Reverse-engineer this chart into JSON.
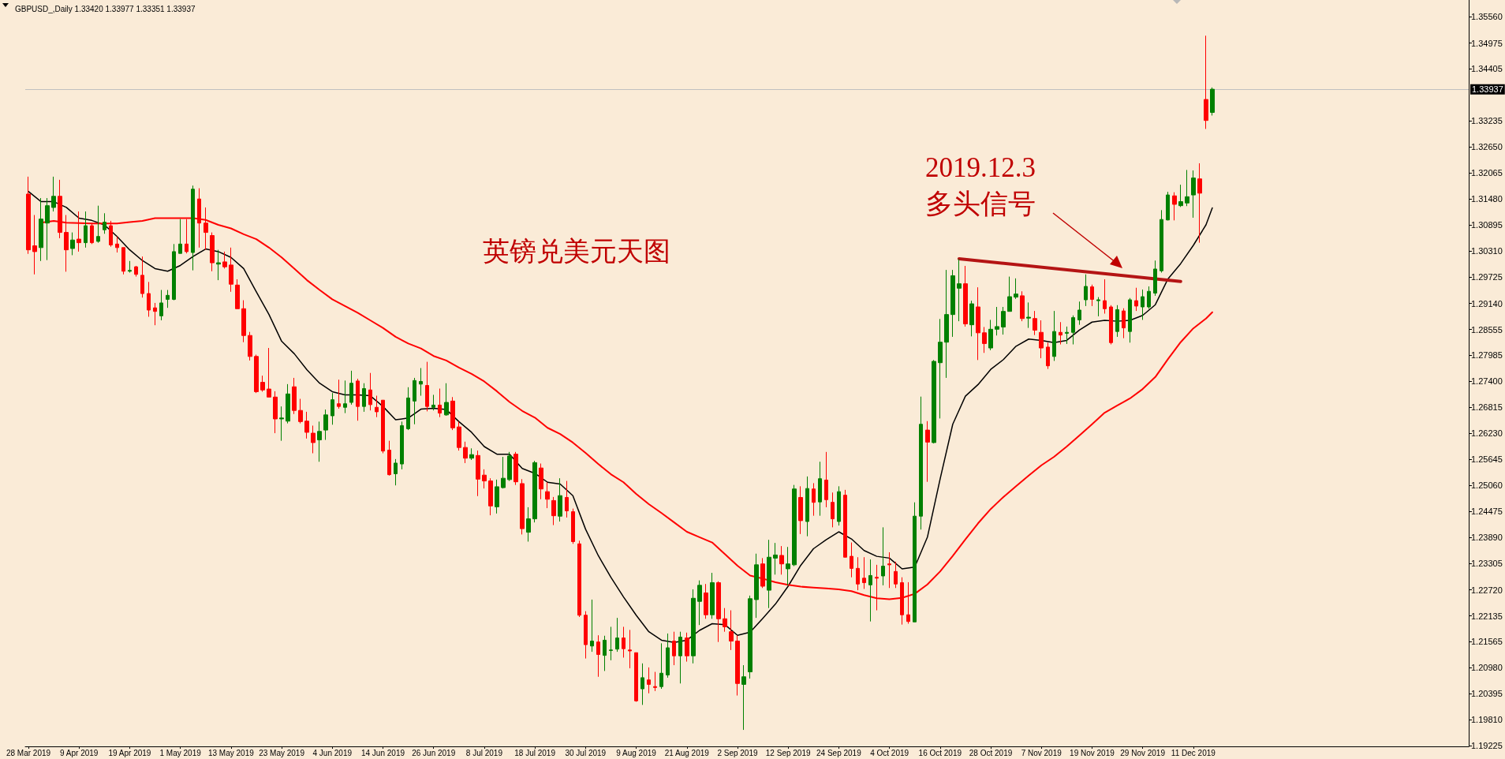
{
  "chart_data": {
    "type": "candlestick",
    "title": "英镑兑美元天图",
    "subtitle": "GBPUSD_,Daily 1.33420 1.33977 1.33351 1.33937",
    "annotations": [
      "2019.12.3",
      "多头信号"
    ],
    "categories": [
      "28 Mar 2019",
      null,
      null,
      null,
      null,
      null,
      null,
      null,
      "9 Apr 2019",
      null,
      null,
      null,
      null,
      null,
      null,
      null,
      "19 Apr 2019",
      null,
      null,
      null,
      null,
      null,
      null,
      null,
      "1 May 2019",
      null,
      null,
      null,
      null,
      null,
      null,
      null,
      "13 May 2019",
      null,
      null,
      null,
      null,
      null,
      null,
      null,
      "23 May 2019",
      null,
      null,
      null,
      null,
      null,
      null,
      null,
      "4 Jun 2019",
      null,
      null,
      null,
      null,
      null,
      null,
      null,
      "14 Jun 2019",
      null,
      null,
      null,
      null,
      null,
      null,
      null,
      "26 Jun 2019",
      null,
      null,
      null,
      null,
      null,
      null,
      null,
      "8 Jul 2019",
      null,
      null,
      null,
      null,
      null,
      null,
      null,
      "18 Jul 2019",
      null,
      null,
      null,
      null,
      null,
      null,
      null,
      "30 Jul 2019",
      null,
      null,
      null,
      null,
      null,
      null,
      null,
      "9 Aug 2019",
      null,
      null,
      null,
      null,
      null,
      null,
      null,
      "21 Aug 2019",
      null,
      null,
      null,
      null,
      null,
      null,
      null,
      "2 Sep 2019",
      null,
      null,
      null,
      null,
      null,
      null,
      null,
      "12 Sep 2019",
      null,
      null,
      null,
      null,
      null,
      null,
      null,
      "24 Sep 2019",
      null,
      null,
      null,
      null,
      null,
      null,
      null,
      "4 Oct 2019",
      null,
      null,
      null,
      null,
      null,
      null,
      null,
      "16 Oct 2019",
      null,
      null,
      null,
      null,
      null,
      null,
      null,
      "28 Oct 2019",
      null,
      null,
      null,
      null,
      null,
      null,
      null,
      "7 Nov 2019",
      null,
      null,
      null,
      null,
      null,
      null,
      null,
      "19 Nov 2019",
      null,
      null,
      null,
      null,
      null,
      null,
      null,
      "29 Nov 2019",
      null,
      null,
      null,
      null,
      null,
      null,
      null,
      "11 Dec 2019",
      null,
      null,
      null
    ],
    "series": [
      {
        "ohlc": [
          [
            1.3159,
            1.3198,
            1.3025,
            1.3034
          ],
          [
            1.3043,
            1.3112,
            1.2979,
            1.303
          ],
          [
            1.3039,
            1.315,
            1.3009,
            1.3103
          ],
          [
            1.3094,
            1.315,
            1.3011,
            1.3133
          ],
          [
            1.3129,
            1.3198,
            1.312,
            1.3154
          ],
          [
            1.3154,
            1.3191,
            1.306,
            1.3073
          ],
          [
            1.3073,
            1.3112,
            1.2985,
            1.3034
          ],
          [
            1.3037,
            1.3073,
            1.3022,
            1.3056
          ],
          [
            1.3058,
            1.312,
            1.303,
            1.305
          ],
          [
            1.305,
            1.312,
            1.3039,
            1.3088
          ],
          [
            1.3088,
            1.3094,
            1.3047,
            1.305
          ],
          [
            1.3053,
            1.3133,
            1.305,
            1.3064
          ],
          [
            1.3079,
            1.3116,
            1.307,
            1.3096
          ],
          [
            1.3088,
            1.3099,
            1.3041,
            1.3045
          ],
          [
            1.3047,
            1.3064,
            1.3028,
            1.3039
          ],
          [
            1.3039,
            1.3039,
            1.2979,
            1.2986
          ],
          [
            1.2986,
            1.3009,
            1.2983,
            1.2988
          ],
          [
            1.2996,
            1.2998,
            1.2974,
            1.2979
          ],
          [
            1.2977,
            1.3019,
            1.2927,
            1.2936
          ],
          [
            1.2936,
            1.2962,
            1.2884,
            1.2899
          ],
          [
            1.2904,
            1.2915,
            1.2865,
            1.2896
          ],
          [
            1.2886,
            1.2944,
            1.2876,
            1.2915
          ],
          [
            1.2923,
            1.2944,
            1.2904,
            1.2932
          ],
          [
            1.2923,
            1.3047,
            1.2921,
            1.303
          ],
          [
            1.3026,
            1.3103,
            1.3026,
            1.3047
          ],
          [
            1.3047,
            1.3103,
            1.3026,
            1.303
          ],
          [
            1.3028,
            1.3178,
            1.2988,
            1.317
          ],
          [
            1.3148,
            1.3172,
            1.3039,
            1.3094
          ],
          [
            1.3094,
            1.3129,
            1.3034,
            1.3073
          ],
          [
            1.3066,
            1.3073,
            1.2986,
            1.3005
          ],
          [
            1.3002,
            1.3034,
            1.2966,
            1.3005
          ],
          [
            1.3007,
            1.303,
            1.2992,
            1.2996
          ],
          [
            1.3,
            1.3039,
            1.294,
            1.2957
          ],
          [
            1.2955,
            1.2968,
            1.2902,
            1.2902
          ],
          [
            1.2902,
            1.2921,
            1.2827,
            1.2842
          ],
          [
            1.2842,
            1.285,
            1.2786,
            1.2795
          ],
          [
            1.2795,
            1.2799,
            1.2713,
            1.2716
          ],
          [
            1.2737,
            1.2752,
            1.2716,
            1.272
          ],
          [
            1.2722,
            1.2814,
            1.2704,
            1.2704
          ],
          [
            1.2704,
            1.2717,
            1.2623,
            1.2655
          ],
          [
            1.2655,
            1.2683,
            1.2606,
            1.2657
          ],
          [
            1.265,
            1.2733,
            1.2645,
            1.2711
          ],
          [
            1.2727,
            1.2747,
            1.2666,
            1.2674
          ],
          [
            1.2674,
            1.27,
            1.2645,
            1.2649
          ],
          [
            1.265,
            1.2671,
            1.2611,
            1.2625
          ],
          [
            1.2623,
            1.264,
            1.2578,
            1.2602
          ],
          [
            1.2608,
            1.2649,
            1.2559,
            1.2627
          ],
          [
            1.263,
            1.2676,
            1.2608,
            1.2664
          ],
          [
            1.2662,
            1.2713,
            1.2642,
            1.2698
          ],
          [
            1.2689,
            1.2743,
            1.2678,
            1.2683
          ],
          [
            1.2681,
            1.2741,
            1.2668,
            1.2689
          ],
          [
            1.2692,
            1.2763,
            1.2687,
            1.2735
          ],
          [
            1.274,
            1.2745,
            1.2651,
            1.2683
          ],
          [
            1.2683,
            1.2735,
            1.2671,
            1.2723
          ],
          [
            1.272,
            1.2758,
            1.2674,
            1.2687
          ],
          [
            1.2681,
            1.2707,
            1.2659,
            1.2671
          ],
          [
            1.2697,
            1.2697,
            1.2578,
            1.2583
          ],
          [
            1.2585,
            1.2606,
            1.2528,
            1.253
          ],
          [
            1.2532,
            1.2565,
            1.2506,
            1.2556
          ],
          [
            1.2554,
            1.2649,
            1.2542,
            1.264
          ],
          [
            1.2633,
            1.2726,
            1.263,
            1.2702
          ],
          [
            1.2695,
            1.2747,
            1.2643,
            1.2741
          ],
          [
            1.2733,
            1.2769,
            1.2707,
            1.2739
          ],
          [
            1.273,
            1.2783,
            1.2672,
            1.2683
          ],
          [
            1.2681,
            1.2709,
            1.2674,
            1.2686
          ],
          [
            1.2686,
            1.2723,
            1.2659,
            1.2668
          ],
          [
            1.2664,
            1.2735,
            1.2662,
            1.2692
          ],
          [
            1.2695,
            1.2704,
            1.263,
            1.2635
          ],
          [
            1.2637,
            1.2649,
            1.2584,
            1.2591
          ],
          [
            1.2591,
            1.2604,
            1.2556,
            1.2567
          ],
          [
            1.2567,
            1.2589,
            1.2563,
            1.2575
          ],
          [
            1.2573,
            1.2584,
            1.2482,
            1.252
          ],
          [
            1.2529,
            1.2542,
            1.2499,
            1.2516
          ],
          [
            1.2516,
            1.2522,
            1.2439,
            1.246
          ],
          [
            1.2458,
            1.2519,
            1.2443,
            1.2503
          ],
          [
            1.2501,
            1.257,
            1.2499,
            1.2522
          ],
          [
            1.2519,
            1.2581,
            1.2516,
            1.2572
          ],
          [
            1.2576,
            1.2581,
            1.2507,
            1.2514
          ],
          [
            1.251,
            1.252,
            1.2396,
            1.2409
          ],
          [
            1.2401,
            1.2457,
            1.238,
            1.2431
          ],
          [
            1.2431,
            1.2561,
            1.2423,
            1.2557
          ],
          [
            1.2545,
            1.2555,
            1.2475,
            1.2498
          ],
          [
            1.2492,
            1.2513,
            1.2455,
            1.2475
          ],
          [
            1.2472,
            1.248,
            1.2417,
            1.2438
          ],
          [
            1.2437,
            1.2522,
            1.2425,
            1.2483
          ],
          [
            1.2479,
            1.2516,
            1.2434,
            1.2449
          ],
          [
            1.2447,
            1.2454,
            1.2375,
            1.238
          ],
          [
            1.2375,
            1.2382,
            1.2211,
            1.2215
          ],
          [
            1.2215,
            1.2224,
            1.2118,
            1.2149
          ],
          [
            1.2146,
            1.225,
            1.2133,
            1.2157
          ],
          [
            1.2155,
            1.217,
            1.2077,
            1.2127
          ],
          [
            1.2125,
            1.2169,
            1.209,
            1.2159
          ],
          [
            1.2136,
            1.2189,
            1.2114,
            1.2137
          ],
          [
            1.2139,
            1.2209,
            1.2133,
            1.2164
          ],
          [
            1.2164,
            1.2189,
            1.212,
            1.214
          ],
          [
            1.2137,
            1.2182,
            1.2096,
            1.2135
          ],
          [
            1.2131,
            1.2131,
            1.2021,
            1.2023
          ],
          [
            1.205,
            1.2107,
            1.2014,
            1.2075
          ],
          [
            1.207,
            1.2098,
            1.204,
            1.206
          ],
          [
            1.2055,
            1.2088,
            1.2045,
            1.2053
          ],
          [
            1.2055,
            1.2152,
            1.205,
            1.2085
          ],
          [
            1.2081,
            1.2174,
            1.2075,
            1.2142
          ],
          [
            1.2157,
            1.2178,
            1.2103,
            1.2124
          ],
          [
            1.2124,
            1.2178,
            1.2062,
            1.2166
          ],
          [
            1.2164,
            1.2176,
            1.2111,
            1.2124
          ],
          [
            1.2124,
            1.2273,
            1.2107,
            1.2253
          ],
          [
            1.2246,
            1.2293,
            1.2193,
            1.2282
          ],
          [
            1.2265,
            1.2285,
            1.2207,
            1.2216
          ],
          [
            1.2216,
            1.231,
            1.2207,
            1.2288
          ],
          [
            1.2288,
            1.2291,
            1.2155,
            1.2207
          ],
          [
            1.2207,
            1.2231,
            1.2178,
            1.2189
          ],
          [
            1.2178,
            1.2226,
            1.2137,
            1.2157
          ],
          [
            1.2157,
            1.217,
            1.2035,
            1.2062
          ],
          [
            1.206,
            1.2103,
            1.1958,
            1.2077
          ],
          [
            1.2088,
            1.2259,
            1.2073,
            1.2252
          ],
          [
            1.225,
            1.2353,
            1.2209,
            1.2328
          ],
          [
            1.233,
            1.2343,
            1.2276,
            1.228
          ],
          [
            1.2271,
            1.2384,
            1.2231,
            1.2345
          ],
          [
            1.2343,
            1.2377,
            1.2306,
            1.235
          ],
          [
            1.2349,
            1.237,
            1.2306,
            1.233
          ],
          [
            1.2319,
            1.2368,
            1.2282,
            1.233
          ],
          [
            1.2328,
            1.2507,
            1.2325,
            1.2498
          ],
          [
            1.2479,
            1.2504,
            1.2397,
            1.2427
          ],
          [
            1.2425,
            1.2526,
            1.2392,
            1.2499
          ],
          [
            1.2498,
            1.2511,
            1.2438,
            1.2468
          ],
          [
            1.2469,
            1.2559,
            1.2438,
            1.2521
          ],
          [
            1.2518,
            1.2581,
            1.2457,
            1.2474
          ],
          [
            1.2468,
            1.249,
            1.2412,
            1.2431
          ],
          [
            1.2425,
            1.2504,
            1.2416,
            1.2492
          ],
          [
            1.2484,
            1.2496,
            1.2345,
            1.2345
          ],
          [
            1.2347,
            1.2378,
            1.23,
            1.232
          ],
          [
            1.232,
            1.2345,
            1.2271,
            1.2285
          ],
          [
            1.2298,
            1.2345,
            1.2274,
            1.2288
          ],
          [
            1.2283,
            1.234,
            1.2201,
            1.2304
          ],
          [
            1.23,
            1.2328,
            1.2226,
            1.2298
          ],
          [
            1.2303,
            1.2412,
            1.2282,
            1.2325
          ],
          [
            1.233,
            1.2356,
            1.2276,
            1.2328
          ],
          [
            1.2313,
            1.2335,
            1.2276,
            1.2285
          ],
          [
            1.2288,
            1.23,
            1.2194,
            1.2216
          ],
          [
            1.2216,
            1.2289,
            1.2196,
            1.2201
          ],
          [
            1.22,
            1.2468,
            1.22,
            1.2437
          ],
          [
            1.2437,
            1.2705,
            1.2407,
            1.2643
          ],
          [
            1.263,
            1.265,
            1.2514,
            1.2603
          ],
          [
            1.2602,
            1.2787,
            1.26,
            1.2784
          ],
          [
            1.2781,
            1.2879,
            1.2656,
            1.2827
          ],
          [
            1.2827,
            1.2989,
            1.2747,
            1.2889
          ],
          [
            1.2889,
            1.2989,
            1.2839,
            1.2976
          ],
          [
            1.2948,
            1.3013,
            1.2874,
            1.2958
          ],
          [
            1.2958,
            1.2998,
            1.2862,
            1.2868
          ],
          [
            1.2866,
            1.292,
            1.284,
            1.2913
          ],
          [
            1.2906,
            1.295,
            1.2787,
            1.2848
          ],
          [
            1.2848,
            1.2861,
            1.2803,
            1.2824
          ],
          [
            1.2814,
            1.2877,
            1.2809,
            1.2856
          ],
          [
            1.2856,
            1.2906,
            1.2842,
            1.2862
          ],
          [
            1.2861,
            1.2906,
            1.2844,
            1.2896
          ],
          [
            1.2896,
            1.2974,
            1.2896,
            1.2929
          ],
          [
            1.2928,
            1.297,
            1.2924,
            1.2935
          ],
          [
            1.2931,
            1.2941,
            1.2874,
            1.288
          ],
          [
            1.2881,
            1.2916,
            1.2859,
            1.2883
          ],
          [
            1.288,
            1.2897,
            1.2843,
            1.2854
          ],
          [
            1.2849,
            1.2876,
            1.2791,
            1.2814
          ],
          [
            1.2816,
            1.2826,
            1.2767,
            1.2774
          ],
          [
            1.2795,
            1.2897,
            1.2785,
            1.2851
          ],
          [
            1.2849,
            1.2872,
            1.2822,
            1.2843
          ],
          [
            1.2847,
            1.2862,
            1.2823,
            1.2849
          ],
          [
            1.2849,
            1.2887,
            1.2822,
            1.2882
          ],
          [
            1.2877,
            1.2918,
            1.2866,
            1.2899
          ],
          [
            1.2922,
            1.2979,
            1.2908,
            1.2952
          ],
          [
            1.2951,
            1.2956,
            1.2908,
            1.2923
          ],
          [
            1.292,
            1.2928,
            1.2885,
            1.2922
          ],
          [
            1.292,
            1.2968,
            1.2891,
            1.2902
          ],
          [
            1.2906,
            1.291,
            1.2822,
            1.2826
          ],
          [
            1.2851,
            1.291,
            1.2839,
            1.29
          ],
          [
            1.2897,
            1.2903,
            1.2836,
            1.2859
          ],
          [
            1.2851,
            1.2926,
            1.2826,
            1.2922
          ],
          [
            1.292,
            1.2949,
            1.2897,
            1.2908
          ],
          [
            1.2906,
            1.2945,
            1.2877,
            1.2929
          ],
          [
            1.2906,
            1.2952,
            1.2902,
            1.2941
          ],
          [
            1.2937,
            1.301,
            1.2931,
            1.2991
          ],
          [
            1.2987,
            1.3123,
            1.2983,
            1.3102
          ],
          [
            1.3101,
            1.3164,
            1.31,
            1.3157
          ],
          [
            1.3155,
            1.3163,
            1.31,
            1.3136
          ],
          [
            1.3133,
            1.318,
            1.313,
            1.3142
          ],
          [
            1.3139,
            1.3213,
            1.3132,
            1.3153
          ],
          [
            1.3157,
            1.3212,
            1.3106,
            1.3195
          ],
          [
            1.3193,
            1.3228,
            1.305,
            1.3161
          ],
          [
            1.3371,
            1.3514,
            1.3305,
            1.3324
          ],
          [
            1.3342,
            1.3398,
            1.3335,
            1.3394
          ]
        ],
        "colors": [
          "#ff0000",
          "#ff0000",
          "#008000",
          "#008000",
          "#008000",
          "#ff0000",
          "#ff0000",
          "#008000",
          "#ff0000",
          "#008000",
          "#ff0000",
          "#008000",
          "#008000",
          "#ff0000",
          "#ff0000",
          "#ff0000",
          "#008000",
          "#ff0000",
          "#ff0000",
          "#ff0000",
          "#ff0000",
          "#008000",
          "#008000",
          "#008000",
          "#008000",
          "#ff0000",
          "#008000",
          "#ff0000",
          "#ff0000",
          "#ff0000",
          "#008000",
          "#ff0000",
          "#ff0000",
          "#ff0000",
          "#ff0000",
          "#ff0000",
          "#ff0000",
          "#ff0000",
          "#ff0000",
          "#ff0000",
          "#008000",
          "#008000",
          "#ff0000",
          "#ff0000",
          "#ff0000",
          "#ff0000",
          "#008000",
          "#008000",
          "#008000",
          "#ff0000",
          "#008000",
          "#008000",
          "#ff0000",
          "#008000",
          "#ff0000",
          "#ff0000",
          "#ff0000",
          "#ff0000",
          "#008000",
          "#008000",
          "#008000",
          "#008000",
          "#008000",
          "#ff0000",
          "#008000",
          "#ff0000",
          "#008000",
          "#ff0000",
          "#ff0000",
          "#ff0000",
          "#008000",
          "#ff0000",
          "#ff0000",
          "#ff0000",
          "#008000",
          "#008000",
          "#008000",
          "#ff0000",
          "#ff0000",
          "#008000",
          "#008000",
          "#ff0000",
          "#ff0000",
          "#ff0000",
          "#008000",
          "#ff0000",
          "#ff0000",
          "#ff0000",
          "#ff0000",
          "#008000",
          "#ff0000",
          "#008000",
          "#008000",
          "#008000",
          "#ff0000",
          "#ff0000",
          "#ff0000",
          "#008000",
          "#ff0000",
          "#ff0000",
          "#008000",
          "#008000",
          "#ff0000",
          "#008000",
          "#ff0000",
          "#008000",
          "#008000",
          "#ff0000",
          "#008000",
          "#ff0000",
          "#ff0000",
          "#ff0000",
          "#ff0000",
          "#008000",
          "#008000",
          "#008000",
          "#ff0000",
          "#008000",
          "#008000",
          "#ff0000",
          "#008000",
          "#008000",
          "#ff0000",
          "#008000",
          "#ff0000",
          "#008000",
          "#ff0000",
          "#ff0000",
          "#008000",
          "#ff0000",
          "#ff0000",
          "#ff0000",
          "#ff0000",
          "#008000",
          "#ff0000",
          "#008000",
          "#ff0000",
          "#ff0000",
          "#ff0000",
          "#ff0000",
          "#008000",
          "#008000",
          "#ff0000",
          "#008000",
          "#008000",
          "#008000",
          "#008000",
          "#008000",
          "#ff0000",
          "#008000",
          "#ff0000",
          "#ff0000",
          "#008000",
          "#008000",
          "#008000",
          "#008000",
          "#008000",
          "#ff0000",
          "#008000",
          "#ff0000",
          "#ff0000",
          "#ff0000",
          "#008000",
          "#ff0000",
          "#008000",
          "#008000",
          "#008000",
          "#008000",
          "#ff0000",
          "#008000",
          "#ff0000",
          "#ff0000",
          "#008000",
          "#ff0000",
          "#008000",
          "#ff0000",
          "#008000",
          "#008000",
          "#008000",
          "#008000",
          "#008000",
          "#ff0000",
          "#008000",
          "#008000",
          "#008000",
          "#ff0000",
          "#ff0000",
          "#008000"
        ]
      },
      {
        "type": "line",
        "color": "#000000",
        "values": [
          1.3165,
          null,
          1.3142,
          null,
          1.3142,
          null,
          1.3129,
          null,
          1.3105,
          null,
          1.31,
          null,
          1.309,
          null,
          1.3064,
          null,
          1.3034,
          null,
          1.301,
          null,
          1.2992,
          null,
          1.2986,
          null,
          1.2999,
          null,
          1.3019,
          null,
          1.3036,
          null,
          1.303,
          null,
          1.3017,
          null,
          1.2992,
          null,
          1.294,
          null,
          1.2889,
          null,
          1.2829,
          null,
          1.2801,
          null,
          1.2765,
          null,
          1.2735,
          null,
          1.2716,
          null,
          1.2709,
          null,
          1.2709,
          null,
          1.2707,
          null,
          1.2683,
          null,
          1.2653,
          null,
          1.2657,
          null,
          1.2677,
          null,
          1.2679,
          null,
          1.2676,
          null,
          1.2649,
          null,
          1.2625,
          null,
          1.2593,
          null,
          1.2576,
          null,
          1.2576,
          null,
          1.2544,
          null,
          1.2533,
          null,
          1.2513,
          null,
          1.2509,
          null,
          1.2483,
          null,
          1.2408,
          null,
          1.2349,
          null,
          1.23,
          null,
          1.2256,
          null,
          1.2215,
          null,
          1.2178,
          null,
          1.2159,
          null,
          1.2154,
          null,
          1.2159,
          null,
          1.2181,
          null,
          1.2196,
          null,
          1.2194,
          null,
          1.217,
          null,
          1.2177,
          null,
          1.2208,
          null,
          1.224,
          null,
          1.228,
          null,
          1.2327,
          null,
          1.2364,
          null,
          1.2384,
          null,
          1.2402,
          null,
          1.2386,
          null,
          1.236,
          null,
          1.2347,
          null,
          1.2343,
          null,
          1.2319,
          null,
          1.2323,
          null,
          1.239,
          null,
          1.252,
          null,
          1.2643,
          null,
          1.2706,
          null,
          1.2732,
          null,
          1.2766,
          null,
          1.2788,
          null,
          1.2818,
          null,
          1.2834,
          null,
          1.2831,
          null,
          1.2826,
          null,
          1.2831,
          null,
          1.2854,
          null,
          1.2872,
          null,
          1.2876,
          null,
          1.2874,
          null,
          1.2876,
          null,
          1.2887,
          null,
          1.2911,
          null,
          1.2969,
          null,
          1.3003,
          null,
          1.3044,
          null,
          1.309,
          1.3128
        ]
      },
      {
        "type": "line",
        "color": "#ff0000",
        "values": [
          null,
          null,
          1.3095,
          null,
          1.3099,
          null,
          1.3095,
          null,
          1.3094,
          null,
          1.3093,
          null,
          1.3093,
          null,
          1.3093,
          null,
          1.3096,
          null,
          1.3099,
          null,
          1.3105,
          null,
          1.3105,
          null,
          1.3105,
          null,
          1.3105,
          null,
          1.3101,
          null,
          1.309,
          null,
          1.3082,
          null,
          1.3069,
          null,
          1.3058,
          null,
          1.3039,
          null,
          1.3017,
          null,
          1.2992,
          null,
          1.2966,
          null,
          1.2944,
          null,
          1.2923,
          null,
          1.2908,
          null,
          1.2893,
          null,
          1.2876,
          null,
          1.2859,
          null,
          1.2839,
          null,
          1.2824,
          null,
          1.2813,
          null,
          1.2796,
          null,
          1.2786,
          null,
          1.277,
          null,
          1.2756,
          null,
          1.2739,
          null,
          1.2717,
          null,
          1.2693,
          null,
          1.2673,
          null,
          1.2658,
          null,
          1.2635,
          null,
          1.2621,
          null,
          1.2602,
          null,
          1.2579,
          null,
          1.2554,
          null,
          1.2531,
          null,
          1.2513,
          null,
          1.2487,
          null,
          1.2464,
          null,
          1.2444,
          null,
          1.2423,
          null,
          1.2402,
          null,
          1.239,
          null,
          1.2378,
          null,
          1.2352,
          null,
          1.2326,
          null,
          1.2304,
          null,
          1.2297,
          null,
          1.2289,
          null,
          1.2283,
          null,
          1.2279,
          null,
          1.2277,
          null,
          1.2275,
          null,
          1.2273,
          null,
          1.2269,
          null,
          1.226,
          null,
          1.2253,
          null,
          1.2251,
          null,
          1.2254,
          null,
          1.2263,
          null,
          1.2284,
          null,
          1.2313,
          null,
          1.2348,
          null,
          1.2385,
          null,
          1.2421,
          null,
          1.2453,
          null,
          1.248,
          null,
          1.2504,
          null,
          1.2528,
          null,
          1.2551,
          null,
          1.257,
          null,
          1.2593,
          null,
          1.2618,
          null,
          1.2643,
          null,
          1.2669,
          null,
          1.2685,
          null,
          1.2701,
          null,
          1.2722,
          null,
          1.2749,
          null,
          1.2789,
          null,
          1.2827,
          null,
          1.2858,
          null,
          1.288,
          1.2894
        ]
      },
      {
        "type": "line",
        "color": "#b41414",
        "values": [
          null,
          null,
          null,
          null,
          null,
          null,
          null,
          null,
          null,
          null,
          null,
          null,
          null,
          null,
          null,
          null,
          null,
          null,
          null,
          null,
          null,
          null,
          null,
          null,
          null,
          null,
          null,
          null,
          null,
          null,
          null,
          null,
          null,
          null,
          null,
          null,
          null,
          null,
          null,
          null,
          null,
          null,
          null,
          null,
          null,
          null,
          null,
          null,
          null,
          null,
          null,
          null,
          null,
          null,
          null,
          null,
          null,
          null,
          null,
          null,
          null,
          null,
          null,
          null,
          null,
          null,
          null,
          null,
          null,
          null,
          null,
          null,
          null,
          null,
          null,
          null,
          null,
          null,
          null,
          null,
          null,
          null,
          null,
          null,
          null,
          null,
          null,
          null,
          null,
          null,
          null,
          null,
          null,
          null,
          null,
          null,
          null,
          null,
          null,
          null,
          null,
          null,
          null,
          null,
          null,
          null,
          null,
          null,
          null,
          null,
          null,
          null,
          null,
          null,
          null,
          null,
          null,
          null,
          null,
          null,
          null,
          null,
          null,
          null,
          null,
          null,
          null,
          null,
          null,
          null,
          null,
          null,
          null,
          null,
          null,
          null,
          null,
          null,
          null,
          null,
          null,
          null,
          null,
          null,
          null,
          null,
          null,
          1.3014,
          null,
          null,
          null,
          null,
          null,
          null,
          null,
          null,
          null,
          null,
          null,
          null,
          null,
          null,
          null,
          null,
          null,
          null,
          null,
          null,
          null,
          null,
          null,
          null,
          null,
          null,
          null,
          null,
          null,
          null,
          null,
          null,
          null,
          null,
          1.2963,
          null,
          null,
          null,
          null,
          null
        ]
      }
    ],
    "ylim": [
      1.1921,
      1.3594
    ],
    "yticks": [
      {
        "value": 1.3556,
        "label": "1.35560"
      },
      {
        "value": 1.34975,
        "label": "1.34975"
      },
      {
        "value": 1.34405,
        "label": "1.34405"
      },
      {
        "value": 1.33235,
        "label": "1.33235"
      },
      {
        "value": 1.3265,
        "label": "1.32650"
      },
      {
        "value": 1.32065,
        "label": "1.32065"
      },
      {
        "value": 1.3148,
        "label": "1.31480"
      },
      {
        "value": 1.30895,
        "label": "1.30895"
      },
      {
        "value": 1.3031,
        "label": "1.30310"
      },
      {
        "value": 1.29725,
        "label": "1.29725"
      },
      {
        "value": 1.2914,
        "label": "1.29140"
      },
      {
        "value": 1.28555,
        "label": "1.28555"
      },
      {
        "value": 1.27985,
        "label": "1.27985"
      },
      {
        "value": 1.274,
        "label": "1.27400"
      },
      {
        "value": 1.26815,
        "label": "1.26815"
      },
      {
        "value": 1.2623,
        "label": "1.26230"
      },
      {
        "value": 1.25645,
        "label": "1.25645"
      },
      {
        "value": 1.2506,
        "label": "1.25060"
      },
      {
        "value": 1.24475,
        "label": "1.24475"
      },
      {
        "value": 1.2389,
        "label": "1.23890"
      },
      {
        "value": 1.23305,
        "label": "1.23305"
      },
      {
        "value": 1.2272,
        "label": "1.22720"
      },
      {
        "value": 1.22135,
        "label": "1.22135"
      },
      {
        "value": 1.21565,
        "label": "1.21565"
      },
      {
        "value": 1.2098,
        "label": "1.20980"
      },
      {
        "value": 1.20395,
        "label": "1.20395"
      },
      {
        "value": 1.1981,
        "label": "1.19810"
      },
      {
        "value": 1.19225,
        "label": "1.19225"
      }
    ],
    "ref_lines": [
      {
        "axis": "y",
        "value": 1.33937,
        "label": "1.33937",
        "color": "#c0c0c0"
      }
    ],
    "marker": "none"
  }
}
